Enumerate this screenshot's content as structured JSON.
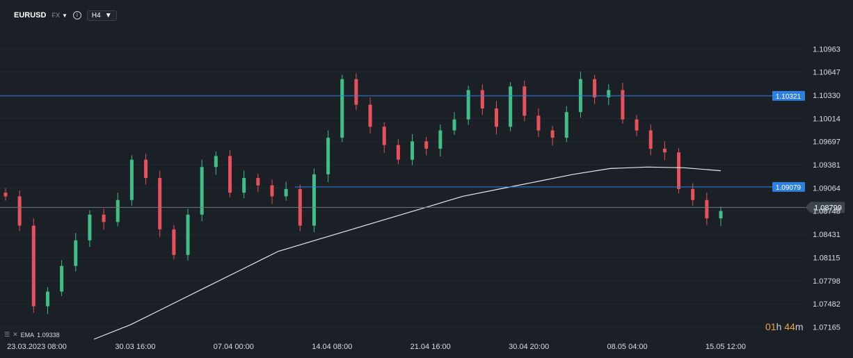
{
  "toolbar": {
    "symbol": "EURUSD",
    "market": "FX",
    "timeframe": "H4",
    "caret": "▼",
    "info": "i"
  },
  "indicator": {
    "name": "EMA",
    "value": "1.09338"
  },
  "timer": {
    "hours": "01",
    "hours_unit": "h",
    "minutes": "44",
    "minutes_unit": "m"
  },
  "colors": {
    "background": "#1b2026",
    "up": "#3fbf86",
    "down": "#e8505b",
    "ema": "#e6e9ec",
    "hline": "#2f7fe0",
    "price_line": "#6f7780"
  },
  "chart_data": {
    "type": "candlestick",
    "timeframe": "H4",
    "y_axis_ticks": [
      "1.10963",
      "1.10647",
      "1.10330",
      "1.10014",
      "1.09697",
      "1.09381",
      "1.09064",
      "1.08748",
      "1.08431",
      "1.08115",
      "1.07798",
      "1.07482",
      "1.07165"
    ],
    "ylim": [
      1.07,
      1.1125
    ],
    "x_axis_labels": [
      "23.03.2023  08:00",
      "30.03  16:00",
      "07.04  00:00",
      "14.04  08:00",
      "21.04  16:00",
      "30.04  20:00",
      "08.05  04:00",
      "15.05  12:00"
    ],
    "horizontal_lines": [
      {
        "value": 1.10321,
        "label": "1.10321"
      },
      {
        "value": 1.09079,
        "label": "1.09079"
      }
    ],
    "current_price": {
      "value": 1.08799,
      "label": "1.08799"
    },
    "ema": {
      "name": "EMA",
      "value": 1.09338
    },
    "series_close_approx": [
      1.0895,
      1.0855,
      1.0745,
      1.0765,
      1.08,
      1.0835,
      1.087,
      1.086,
      1.089,
      1.0945,
      1.092,
      1.085,
      1.0815,
      1.087,
      1.0935,
      1.095,
      1.09,
      1.092,
      1.091,
      1.0895,
      1.0905,
      1.0855,
      1.0925,
      1.0975,
      1.1055,
      1.102,
      1.099,
      1.0965,
      1.0945,
      1.097,
      1.096,
      1.0985,
      1.1,
      1.104,
      1.1015,
      1.099,
      1.1045,
      1.1005,
      1.0985,
      1.0975,
      1.101,
      1.1055,
      1.103,
      1.104,
      1.1,
      1.0985,
      1.096,
      1.0955,
      1.0905,
      1.089,
      1.0865,
      1.0875
    ],
    "ema_approx": [
      1.07,
      1.072,
      1.0745,
      1.077,
      1.0795,
      1.082,
      1.0835,
      1.085,
      1.0865,
      1.088,
      1.0895,
      1.0905,
      1.0915,
      1.0925,
      1.0933,
      1.0935,
      1.0934,
      1.093
    ]
  }
}
